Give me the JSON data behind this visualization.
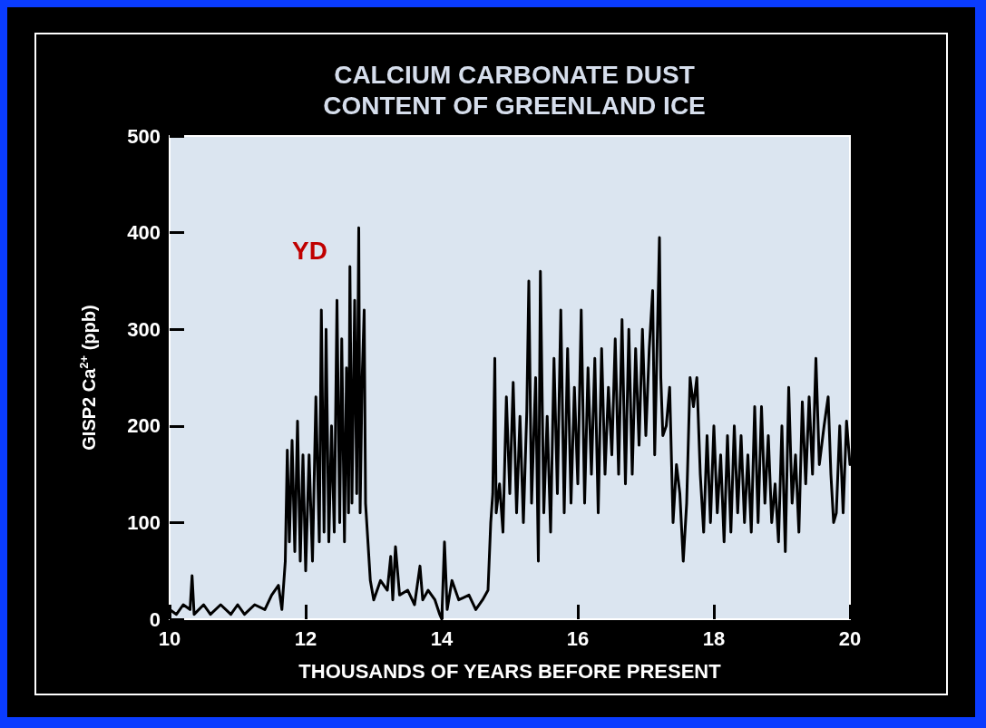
{
  "chart_data": {
    "type": "line",
    "title": "CALCIUM CARBONATE DUST\nCONTENT OF GREENLAND ICE",
    "xlabel": "THOUSANDS OF YEARS BEFORE PRESENT",
    "ylabel": "GISP2 Ca$^{2+}$ (ppb)",
    "xlim": [
      10,
      20
    ],
    "xticks": [
      10,
      12,
      14,
      16,
      18,
      20
    ],
    "ylim": [
      0,
      500
    ],
    "yticks": [
      0,
      100,
      200,
      300,
      400,
      500
    ],
    "grid": false,
    "marker": "none",
    "line_style": "solid",
    "annotations": [
      "YD"
    ],
    "series": [
      {
        "color": "#000000",
        "x": [
          10.0,
          10.1,
          10.2,
          10.3,
          10.33,
          10.36,
          10.5,
          10.6,
          10.75,
          10.9,
          11.0,
          11.1,
          11.25,
          11.4,
          11.5,
          11.6,
          11.65,
          11.7,
          11.73,
          11.76,
          11.8,
          11.84,
          11.88,
          11.92,
          11.96,
          12.0,
          12.05,
          12.1,
          12.15,
          12.2,
          12.23,
          12.27,
          12.3,
          12.34,
          12.38,
          12.42,
          12.46,
          12.5,
          12.53,
          12.57,
          12.6,
          12.63,
          12.65,
          12.68,
          12.72,
          12.75,
          12.78,
          12.8,
          12.83,
          12.86,
          12.88,
          12.95,
          13.0,
          13.1,
          13.2,
          13.25,
          13.28,
          13.32,
          13.38,
          13.5,
          13.6,
          13.68,
          13.72,
          13.8,
          13.9,
          13.97,
          14.0,
          14.04,
          14.08,
          14.15,
          14.25,
          14.4,
          14.5,
          14.6,
          14.68,
          14.72,
          14.75,
          14.78,
          14.8,
          14.85,
          14.9,
          14.95,
          15.0,
          15.05,
          15.1,
          15.15,
          15.2,
          15.25,
          15.28,
          15.32,
          15.38,
          15.42,
          15.45,
          15.5,
          15.55,
          15.6,
          15.65,
          15.7,
          15.75,
          15.8,
          15.85,
          15.9,
          15.95,
          16.0,
          16.05,
          16.1,
          16.15,
          16.2,
          16.25,
          16.3,
          16.35,
          16.4,
          16.45,
          16.5,
          16.55,
          16.6,
          16.65,
          16.7,
          16.75,
          16.8,
          16.85,
          16.9,
          16.95,
          17.0,
          17.05,
          17.1,
          17.13,
          17.18,
          17.2,
          17.22,
          17.25,
          17.3,
          17.35,
          17.4,
          17.45,
          17.5,
          17.55,
          17.6,
          17.65,
          17.7,
          17.75,
          17.8,
          17.85,
          17.9,
          17.95,
          18.0,
          18.05,
          18.1,
          18.15,
          18.2,
          18.25,
          18.3,
          18.35,
          18.4,
          18.45,
          18.5,
          18.55,
          18.6,
          18.65,
          18.7,
          18.75,
          18.8,
          18.85,
          18.9,
          18.95,
          19.0,
          19.05,
          19.1,
          19.15,
          19.2,
          19.25,
          19.3,
          19.35,
          19.4,
          19.45,
          19.5,
          19.55,
          19.62,
          19.68,
          19.72,
          19.76,
          19.8,
          19.85,
          19.9,
          19.95,
          20.0
        ],
        "values": [
          10,
          5,
          15,
          10,
          45,
          5,
          15,
          5,
          15,
          5,
          15,
          5,
          15,
          10,
          25,
          35,
          10,
          60,
          175,
          80,
          185,
          70,
          205,
          60,
          170,
          50,
          170,
          60,
          230,
          80,
          320,
          90,
          300,
          80,
          200,
          90,
          330,
          100,
          290,
          80,
          260,
          110,
          365,
          120,
          330,
          130,
          405,
          110,
          250,
          320,
          120,
          40,
          20,
          40,
          30,
          65,
          20,
          75,
          25,
          30,
          15,
          55,
          20,
          30,
          20,
          5,
          0,
          80,
          10,
          40,
          20,
          25,
          10,
          20,
          30,
          100,
          130,
          270,
          110,
          140,
          90,
          230,
          130,
          245,
          110,
          210,
          100,
          215,
          350,
          120,
          250,
          60,
          360,
          110,
          210,
          90,
          270,
          130,
          320,
          110,
          280,
          120,
          240,
          140,
          320,
          120,
          260,
          150,
          270,
          110,
          280,
          150,
          240,
          170,
          290,
          150,
          310,
          140,
          300,
          150,
          280,
          180,
          300,
          190,
          280,
          340,
          170,
          330,
          395,
          250,
          190,
          200,
          240,
          100,
          160,
          130,
          60,
          120,
          250,
          220,
          250,
          150,
          90,
          190,
          100,
          200,
          110,
          170,
          80,
          190,
          90,
          200,
          110,
          190,
          100,
          170,
          90,
          220,
          100,
          220,
          120,
          190,
          100,
          140,
          80,
          200,
          70,
          240,
          120,
          170,
          90,
          225,
          140,
          230,
          150,
          270,
          160,
          200,
          230,
          150,
          100,
          110,
          200,
          110,
          205,
          160
        ]
      }
    ]
  }
}
